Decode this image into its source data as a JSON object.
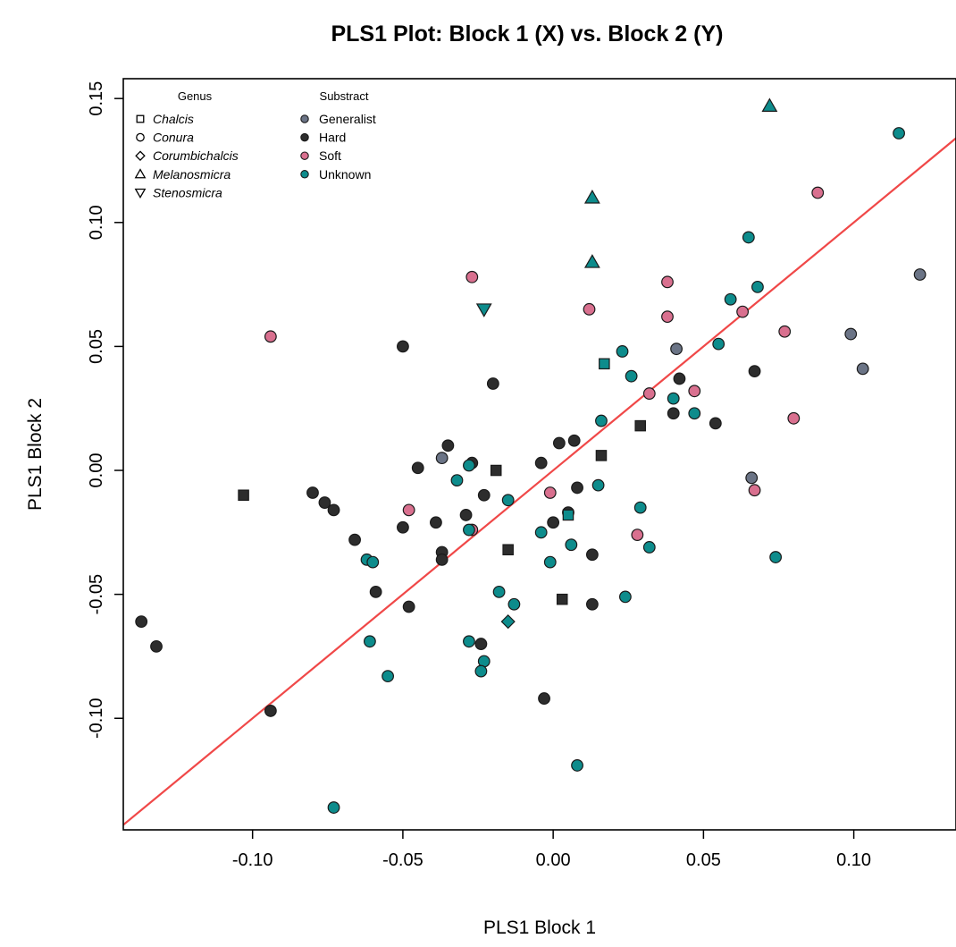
{
  "chart_data": {
    "type": "scatter",
    "title": "PLS1 Plot: Block 1 (X) vs. Block 2 (Y)",
    "xlabel": "PLS1 Block 1",
    "ylabel": "PLS1 Block 2",
    "xlim": [
      -0.143,
      0.134
    ],
    "ylim": [
      -0.145,
      0.158
    ],
    "x_ticks": [
      -0.1,
      -0.05,
      0.0,
      0.05,
      0.1
    ],
    "x_tick_labels": [
      "-0.10",
      "-0.05",
      "0.00",
      "0.05",
      "0.10"
    ],
    "y_ticks": [
      -0.1,
      -0.05,
      0.0,
      0.05,
      0.1,
      0.15
    ],
    "y_tick_labels": [
      "-0.10",
      "-0.05",
      "0.00",
      "0.05",
      "0.10",
      "0.15"
    ],
    "grid": false,
    "legend_position": "top-left",
    "colors": {
      "Generalist": "#6b7486",
      "Hard": "#2d2d2d",
      "Soft": "#d9708f",
      "Unknown": "#0d8c8c",
      "fit_line": "#f04848"
    },
    "legend": {
      "genus_title": "Genus",
      "genus": [
        "Chalcis",
        "Conura",
        "Corumbichalcis",
        "Melanosmicra",
        "Stenosmicra"
      ],
      "genus_shapes": [
        "square",
        "circle",
        "diamond",
        "triangle-up",
        "triangle-down"
      ],
      "substract_title": "Substract",
      "substract": [
        "Generalist",
        "Hard",
        "Soft",
        "Unknown"
      ]
    },
    "fit_line": {
      "slope": 1.0,
      "intercept": 0.0
    },
    "points": [
      {
        "x": -0.137,
        "y": -0.061,
        "genus": "Conura",
        "substract": "Hard"
      },
      {
        "x": -0.132,
        "y": -0.071,
        "genus": "Conura",
        "substract": "Hard"
      },
      {
        "x": -0.094,
        "y": -0.097,
        "genus": "Conura",
        "substract": "Hard"
      },
      {
        "x": -0.08,
        "y": -0.009,
        "genus": "Conura",
        "substract": "Hard"
      },
      {
        "x": -0.076,
        "y": -0.013,
        "genus": "Conura",
        "substract": "Hard"
      },
      {
        "x": -0.073,
        "y": -0.016,
        "genus": "Conura",
        "substract": "Hard"
      },
      {
        "x": -0.066,
        "y": -0.028,
        "genus": "Conura",
        "substract": "Hard"
      },
      {
        "x": -0.059,
        "y": -0.049,
        "genus": "Conura",
        "substract": "Hard"
      },
      {
        "x": -0.05,
        "y": 0.05,
        "genus": "Conura",
        "substract": "Hard"
      },
      {
        "x": -0.05,
        "y": -0.023,
        "genus": "Conura",
        "substract": "Hard"
      },
      {
        "x": -0.048,
        "y": -0.055,
        "genus": "Conura",
        "substract": "Hard"
      },
      {
        "x": -0.045,
        "y": 0.001,
        "genus": "Conura",
        "substract": "Hard"
      },
      {
        "x": -0.039,
        "y": -0.021,
        "genus": "Conura",
        "substract": "Hard"
      },
      {
        "x": -0.037,
        "y": -0.033,
        "genus": "Conura",
        "substract": "Hard"
      },
      {
        "x": -0.037,
        "y": -0.036,
        "genus": "Conura",
        "substract": "Hard"
      },
      {
        "x": -0.035,
        "y": 0.01,
        "genus": "Conura",
        "substract": "Hard"
      },
      {
        "x": -0.029,
        "y": -0.018,
        "genus": "Conura",
        "substract": "Hard"
      },
      {
        "x": -0.027,
        "y": 0.003,
        "genus": "Conura",
        "substract": "Hard"
      },
      {
        "x": -0.023,
        "y": -0.01,
        "genus": "Conura",
        "substract": "Hard"
      },
      {
        "x": -0.024,
        "y": -0.07,
        "genus": "Conura",
        "substract": "Hard"
      },
      {
        "x": -0.02,
        "y": 0.035,
        "genus": "Conura",
        "substract": "Hard"
      },
      {
        "x": -0.004,
        "y": 0.003,
        "genus": "Conura",
        "substract": "Hard"
      },
      {
        "x": -0.003,
        "y": -0.092,
        "genus": "Conura",
        "substract": "Hard"
      },
      {
        "x": 0.0,
        "y": -0.021,
        "genus": "Conura",
        "substract": "Hard"
      },
      {
        "x": 0.002,
        "y": 0.011,
        "genus": "Conura",
        "substract": "Hard"
      },
      {
        "x": 0.005,
        "y": -0.017,
        "genus": "Conura",
        "substract": "Hard"
      },
      {
        "x": 0.007,
        "y": 0.012,
        "genus": "Conura",
        "substract": "Hard"
      },
      {
        "x": 0.008,
        "y": -0.007,
        "genus": "Conura",
        "substract": "Hard"
      },
      {
        "x": 0.013,
        "y": -0.034,
        "genus": "Conura",
        "substract": "Hard"
      },
      {
        "x": 0.013,
        "y": -0.054,
        "genus": "Conura",
        "substract": "Hard"
      },
      {
        "x": 0.04,
        "y": 0.023,
        "genus": "Conura",
        "substract": "Hard"
      },
      {
        "x": 0.042,
        "y": 0.037,
        "genus": "Conura",
        "substract": "Hard"
      },
      {
        "x": 0.054,
        "y": 0.019,
        "genus": "Conura",
        "substract": "Hard"
      },
      {
        "x": 0.067,
        "y": 0.04,
        "genus": "Conura",
        "substract": "Hard"
      },
      {
        "x": -0.103,
        "y": -0.01,
        "genus": "Chalcis",
        "substract": "Hard"
      },
      {
        "x": -0.019,
        "y": 0.0,
        "genus": "Chalcis",
        "substract": "Hard"
      },
      {
        "x": -0.015,
        "y": -0.032,
        "genus": "Chalcis",
        "substract": "Hard"
      },
      {
        "x": 0.003,
        "y": -0.052,
        "genus": "Chalcis",
        "substract": "Hard"
      },
      {
        "x": 0.016,
        "y": 0.006,
        "genus": "Chalcis",
        "substract": "Hard"
      },
      {
        "x": 0.029,
        "y": 0.018,
        "genus": "Chalcis",
        "substract": "Hard"
      },
      {
        "x": -0.037,
        "y": 0.005,
        "genus": "Conura",
        "substract": "Generalist"
      },
      {
        "x": 0.041,
        "y": 0.049,
        "genus": "Conura",
        "substract": "Generalist"
      },
      {
        "x": 0.066,
        "y": -0.003,
        "genus": "Conura",
        "substract": "Generalist"
      },
      {
        "x": 0.099,
        "y": 0.055,
        "genus": "Conura",
        "substract": "Generalist"
      },
      {
        "x": 0.103,
        "y": 0.041,
        "genus": "Conura",
        "substract": "Generalist"
      },
      {
        "x": 0.122,
        "y": 0.079,
        "genus": "Conura",
        "substract": "Generalist"
      },
      {
        "x": -0.094,
        "y": 0.054,
        "genus": "Conura",
        "substract": "Soft"
      },
      {
        "x": -0.048,
        "y": -0.016,
        "genus": "Conura",
        "substract": "Soft"
      },
      {
        "x": -0.027,
        "y": -0.024,
        "genus": "Conura",
        "substract": "Soft"
      },
      {
        "x": -0.027,
        "y": 0.078,
        "genus": "Conura",
        "substract": "Soft"
      },
      {
        "x": -0.001,
        "y": -0.009,
        "genus": "Conura",
        "substract": "Soft"
      },
      {
        "x": 0.012,
        "y": 0.065,
        "genus": "Conura",
        "substract": "Soft"
      },
      {
        "x": 0.028,
        "y": -0.026,
        "genus": "Conura",
        "substract": "Soft"
      },
      {
        "x": 0.032,
        "y": 0.031,
        "genus": "Conura",
        "substract": "Soft"
      },
      {
        "x": 0.038,
        "y": 0.062,
        "genus": "Conura",
        "substract": "Soft"
      },
      {
        "x": 0.038,
        "y": 0.076,
        "genus": "Conura",
        "substract": "Soft"
      },
      {
        "x": 0.047,
        "y": 0.032,
        "genus": "Conura",
        "substract": "Soft"
      },
      {
        "x": 0.063,
        "y": 0.064,
        "genus": "Conura",
        "substract": "Soft"
      },
      {
        "x": 0.067,
        "y": -0.008,
        "genus": "Conura",
        "substract": "Soft"
      },
      {
        "x": 0.077,
        "y": 0.056,
        "genus": "Conura",
        "substract": "Soft"
      },
      {
        "x": 0.08,
        "y": 0.021,
        "genus": "Conura",
        "substract": "Soft"
      },
      {
        "x": 0.088,
        "y": 0.112,
        "genus": "Conura",
        "substract": "Soft"
      },
      {
        "x": -0.073,
        "y": -0.136,
        "genus": "Conura",
        "substract": "Unknown"
      },
      {
        "x": -0.062,
        "y": -0.036,
        "genus": "Conura",
        "substract": "Unknown"
      },
      {
        "x": -0.06,
        "y": -0.037,
        "genus": "Conura",
        "substract": "Unknown"
      },
      {
        "x": -0.061,
        "y": -0.069,
        "genus": "Conura",
        "substract": "Unknown"
      },
      {
        "x": -0.055,
        "y": -0.083,
        "genus": "Conura",
        "substract": "Unknown"
      },
      {
        "x": -0.032,
        "y": -0.004,
        "genus": "Conura",
        "substract": "Unknown"
      },
      {
        "x": -0.028,
        "y": 0.002,
        "genus": "Conura",
        "substract": "Unknown"
      },
      {
        "x": -0.028,
        "y": -0.024,
        "genus": "Conura",
        "substract": "Unknown"
      },
      {
        "x": -0.028,
        "y": -0.069,
        "genus": "Conura",
        "substract": "Unknown"
      },
      {
        "x": -0.023,
        "y": -0.077,
        "genus": "Conura",
        "substract": "Unknown"
      },
      {
        "x": -0.024,
        "y": -0.081,
        "genus": "Conura",
        "substract": "Unknown"
      },
      {
        "x": -0.018,
        "y": -0.049,
        "genus": "Conura",
        "substract": "Unknown"
      },
      {
        "x": -0.015,
        "y": -0.012,
        "genus": "Conura",
        "substract": "Unknown"
      },
      {
        "x": -0.013,
        "y": -0.054,
        "genus": "Conura",
        "substract": "Unknown"
      },
      {
        "x": -0.004,
        "y": -0.025,
        "genus": "Conura",
        "substract": "Unknown"
      },
      {
        "x": -0.001,
        "y": -0.037,
        "genus": "Conura",
        "substract": "Unknown"
      },
      {
        "x": 0.006,
        "y": -0.03,
        "genus": "Conura",
        "substract": "Unknown"
      },
      {
        "x": 0.008,
        "y": -0.119,
        "genus": "Conura",
        "substract": "Unknown"
      },
      {
        "x": 0.015,
        "y": -0.006,
        "genus": "Conura",
        "substract": "Unknown"
      },
      {
        "x": 0.016,
        "y": 0.02,
        "genus": "Conura",
        "substract": "Unknown"
      },
      {
        "x": 0.023,
        "y": 0.048,
        "genus": "Conura",
        "substract": "Unknown"
      },
      {
        "x": 0.024,
        "y": -0.051,
        "genus": "Conura",
        "substract": "Unknown"
      },
      {
        "x": 0.026,
        "y": 0.038,
        "genus": "Conura",
        "substract": "Unknown"
      },
      {
        "x": 0.029,
        "y": -0.015,
        "genus": "Conura",
        "substract": "Unknown"
      },
      {
        "x": 0.032,
        "y": -0.031,
        "genus": "Conura",
        "substract": "Unknown"
      },
      {
        "x": 0.04,
        "y": 0.029,
        "genus": "Conura",
        "substract": "Unknown"
      },
      {
        "x": 0.047,
        "y": 0.023,
        "genus": "Conura",
        "substract": "Unknown"
      },
      {
        "x": 0.055,
        "y": 0.051,
        "genus": "Conura",
        "substract": "Unknown"
      },
      {
        "x": 0.059,
        "y": 0.069,
        "genus": "Conura",
        "substract": "Unknown"
      },
      {
        "x": 0.065,
        "y": 0.094,
        "genus": "Conura",
        "substract": "Unknown"
      },
      {
        "x": 0.068,
        "y": 0.074,
        "genus": "Conura",
        "substract": "Unknown"
      },
      {
        "x": 0.074,
        "y": -0.035,
        "genus": "Conura",
        "substract": "Unknown"
      },
      {
        "x": 0.115,
        "y": 0.136,
        "genus": "Conura",
        "substract": "Unknown"
      },
      {
        "x": 0.005,
        "y": -0.018,
        "genus": "Chalcis",
        "substract": "Unknown"
      },
      {
        "x": 0.017,
        "y": 0.043,
        "genus": "Chalcis",
        "substract": "Unknown"
      },
      {
        "x": -0.015,
        "y": -0.061,
        "genus": "Corumbichalcis",
        "substract": "Unknown"
      },
      {
        "x": 0.013,
        "y": 0.084,
        "genus": "Melanosmicra",
        "substract": "Unknown"
      },
      {
        "x": 0.013,
        "y": 0.11,
        "genus": "Melanosmicra",
        "substract": "Unknown"
      },
      {
        "x": 0.072,
        "y": 0.147,
        "genus": "Melanosmicra",
        "substract": "Unknown"
      },
      {
        "x": -0.023,
        "y": 0.065,
        "genus": "Stenosmicra",
        "substract": "Unknown"
      }
    ]
  }
}
